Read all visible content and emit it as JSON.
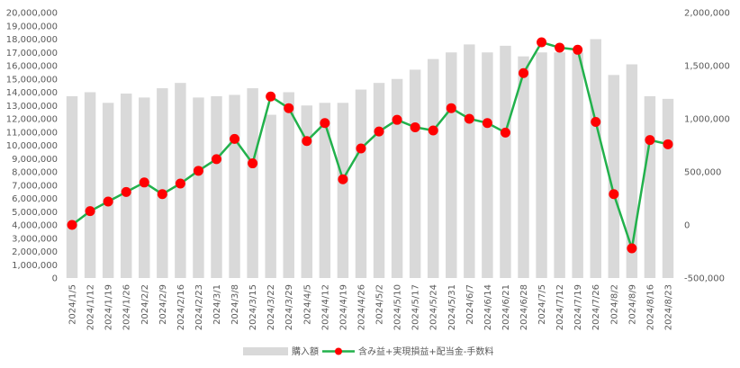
{
  "chart_data": {
    "type": "bar+line",
    "title": "",
    "categories": [
      "2024/1/5",
      "2024/1/12",
      "2024/1/19",
      "2024/1/26",
      "2024/2/2",
      "2024/2/9",
      "2024/2/16",
      "2024/2/23",
      "2024/3/1",
      "2024/3/8",
      "2024/3/15",
      "2024/3/22",
      "2024/3/29",
      "2024/4/5",
      "2024/4/12",
      "2024/4/19",
      "2024/4/26",
      "2024/5/2",
      "2024/5/10",
      "2024/5/17",
      "2024/5/24",
      "2024/5/31",
      "2024/6/7",
      "2024/6/14",
      "2024/6/21",
      "2024/6/28",
      "2024/7/5",
      "2024/7/12",
      "2024/7/19",
      "2024/7/26",
      "2024/8/2",
      "2024/8/9",
      "2024/8/16",
      "2024/8/23"
    ],
    "series": [
      {
        "name": "購入額",
        "kind": "bar",
        "axis": "left",
        "color": "#d9d9d9",
        "values": [
          13700000,
          14000000,
          13200000,
          13900000,
          13600000,
          14300000,
          14700000,
          13600000,
          13700000,
          13800000,
          14300000,
          12300000,
          14000000,
          13000000,
          13200000,
          13200000,
          14200000,
          14700000,
          15000000,
          15700000,
          16500000,
          17000000,
          17600000,
          17000000,
          17500000,
          16700000,
          17000000,
          17000000,
          17000000,
          18000000,
          15300000,
          16100000,
          13700000,
          13500000
        ]
      },
      {
        "name": "含み益+実現損益+配当金-手数料",
        "kind": "line",
        "axis": "right",
        "color": "#22b14c",
        "marker_color": "#ff0000",
        "values": [
          0,
          130000,
          220000,
          310000,
          400000,
          290000,
          390000,
          510000,
          620000,
          810000,
          580000,
          1210000,
          1100000,
          790000,
          960000,
          430000,
          720000,
          880000,
          990000,
          920000,
          890000,
          1100000,
          1000000,
          960000,
          870000,
          1430000,
          1720000,
          1670000,
          1650000,
          970000,
          290000,
          -220000,
          800000,
          760000
        ]
      }
    ],
    "y_left": {
      "min": 0,
      "max": 20000000,
      "step": 1000000,
      "tick_labels": [
        "0",
        "1,000,000",
        "2,000,000",
        "3,000,000",
        "4,000,000",
        "5,000,000",
        "6,000,000",
        "7,000,000",
        "8,000,000",
        "9,000,000",
        "10,000,000",
        "11,000,000",
        "12,000,000",
        "13,000,000",
        "14,000,000",
        "15,000,000",
        "16,000,000",
        "17,000,000",
        "18,000,000",
        "19,000,000",
        "20,000,000"
      ]
    },
    "y_right": {
      "min": -500000,
      "max": 2000000,
      "step": 500000,
      "tick_labels": [
        "-500,000",
        "0",
        "500,000",
        "1,000,000",
        "1,500,000",
        "2,000,000"
      ],
      "negative_color": "#ff0000"
    },
    "grid": false,
    "legend_position": "bottom"
  }
}
